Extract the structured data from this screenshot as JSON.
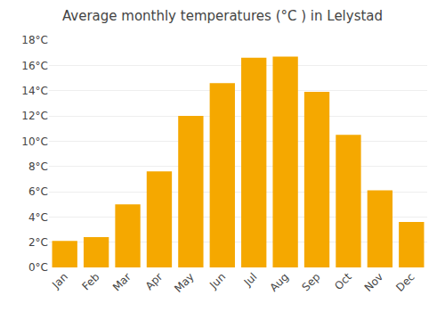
{
  "chart_data": {
    "type": "bar",
    "title": "Average monthly temperatures (°C ) in Lelystad",
    "categories": [
      "Jan",
      "Feb",
      "Mar",
      "Apr",
      "May",
      "Jun",
      "Jul",
      "Aug",
      "Sep",
      "Oct",
      "Nov",
      "Dec"
    ],
    "values": [
      2.1,
      2.4,
      5.0,
      7.6,
      12.0,
      14.6,
      16.6,
      16.7,
      13.9,
      10.5,
      6.1,
      3.6
    ],
    "color": "#F5A800",
    "ylim": [
      0,
      18
    ],
    "yticks": [
      {
        "value": 0,
        "label": "0°C"
      },
      {
        "value": 2,
        "label": "2°C"
      },
      {
        "value": 4,
        "label": "4°C"
      },
      {
        "value": 6,
        "label": "6°C"
      },
      {
        "value": 8,
        "label": "8°C"
      },
      {
        "value": 10,
        "label": "10°C"
      },
      {
        "value": 12,
        "label": "12°C"
      },
      {
        "value": 14,
        "label": "14°C"
      },
      {
        "value": 16,
        "label": "16°C"
      },
      {
        "value": 18,
        "label": "18°C"
      }
    ],
    "grid": true
  }
}
